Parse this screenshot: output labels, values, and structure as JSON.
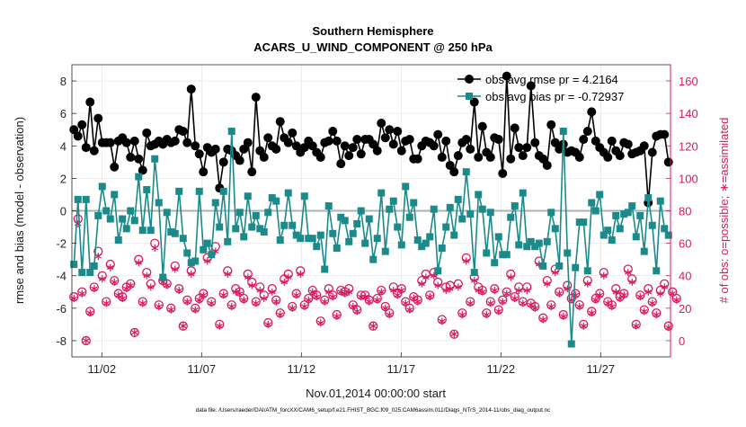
{
  "chart_data": {
    "type": "line",
    "title": "Southern Hemisphere",
    "subtitle": "ACARS_U_WIND_COMPONENT @ 250 hPa",
    "xlabel": "Nov.01,2014 00:00:00 start",
    "ylabel": "rmse and bias (model - observation)",
    "ylabel_right": "# of obs: o=possible; ∗=assimilated",
    "footer": "data file: /Users/raeder/DAI/ATM_forcXX/CAM6_setup/f.e21.FHIST_BGC.f09_025.CAM6assim.011/Diags_NTrS_2014-11/obs_diag_output.nc",
    "x_range": [
      0.5,
      30.5
    ],
    "x_ticks": [
      {
        "x": 2,
        "label": "11/02"
      },
      {
        "x": 7,
        "label": "11/07"
      },
      {
        "x": 12,
        "label": "11/12"
      },
      {
        "x": 17,
        "label": "11/17"
      },
      {
        "x": 22,
        "label": "11/22"
      },
      {
        "x": 27,
        "label": "11/27"
      }
    ],
    "ylim": [
      -9,
      9
    ],
    "yticks": [
      -8,
      -6,
      -4,
      -2,
      0,
      2,
      4,
      6,
      8
    ],
    "ylim_right": [
      -10,
      170
    ],
    "yticks_right": [
      0,
      20,
      40,
      60,
      80,
      100,
      120,
      140,
      160
    ],
    "grid": true,
    "legend_position": "top-right",
    "colors": {
      "rmse": "#000000",
      "bias": "#1a8a8a",
      "nobs": "#d81b60",
      "zero_line": "#b0b0b0"
    },
    "series": [
      {
        "name": "obs avg rmse pr = 4.2164",
        "axis": "left",
        "values": [
          5.0,
          4.6,
          5.3,
          3.9,
          6.7,
          3.7,
          5.7,
          4.2,
          4.2,
          4.2,
          2.7,
          4.3,
          4.5,
          4.2,
          3.3,
          4.3,
          3.2,
          2.5,
          4.8,
          4.0,
          4.1,
          4.3,
          4.1,
          4.4,
          4.2,
          4.3,
          5.0,
          4.9,
          4.2,
          7.5,
          4.0,
          3.5,
          2.4,
          3.9,
          3.6,
          3.8,
          1.4,
          3.0,
          3.8,
          3.7,
          3.4,
          3.1,
          3.8,
          4.2,
          2.4,
          7.0,
          3.7,
          3.3,
          4.5,
          4.0,
          3.8,
          5.5,
          4.5,
          4.2,
          4.8,
          4.0,
          3.6,
          3.9,
          4.3,
          4.0,
          3.6,
          3.3,
          4.2,
          4.3,
          4.9,
          4.3,
          2.9,
          4.0,
          3.4,
          3.9,
          4.4,
          3.5,
          4.4,
          4.4,
          4.1,
          3.7,
          5.4,
          4.5,
          5.0,
          4.1,
          4.9,
          3.7,
          4.3,
          4.4,
          3.2,
          3.2,
          4.0,
          4.3,
          4.2,
          4.0,
          4.7,
          3.3,
          4.3,
          2.8,
          2.4,
          3.4,
          4.2,
          4.4,
          3.8,
          6.7,
          3.3,
          5.2,
          3.6,
          3.3,
          4.5,
          4.4,
          2.3,
          8.3,
          3.2,
          5.1,
          3.9,
          3.4,
          3.9,
          7.7,
          4.2,
          3.4,
          3.2,
          2.8,
          5.3,
          4.2,
          3.8,
          4.1,
          3.6,
          3.7,
          3.6,
          3.3,
          4.4,
          4.9,
          6.1,
          4.3,
          3.9,
          3.6,
          3.3,
          4.3,
          3.7,
          3.4,
          4.2,
          4.1,
          3.5,
          3.6,
          3.7,
          4.0,
          0.5,
          3.6,
          4.6,
          4.7,
          4.7,
          3.0
        ]
      },
      {
        "name": "obs avg bias pr = -0.72937",
        "axis": "left",
        "values": [
          -3.3,
          0.7,
          -3.8,
          0.7,
          -3.8,
          -3.4,
          -0.3,
          1.5,
          0.0,
          -0.5,
          1.0,
          -1.8,
          -0.5,
          -1.1,
          0.0,
          -0.6,
          2.1,
          -1.2,
          1.3,
          -1.2,
          3.2,
          0.5,
          -4.1,
          -0.1,
          -1.3,
          -1.4,
          1.2,
          -1.7,
          -2.6,
          -3.2,
          -3.1,
          1.2,
          -2.4,
          -2.0,
          -2.7,
          0.5,
          -1.0,
          1.2,
          -1.9,
          4.9,
          -1.1,
          -0.1,
          -1.6,
          0.9,
          -1.0,
          -0.3,
          -1.1,
          -1.3,
          -0.1,
          0.8,
          0.6,
          -1.8,
          -0.9,
          1.1,
          -0.9,
          -1.5,
          -1.7,
          0.9,
          -1.7,
          -1.7,
          -2.2,
          -1.5,
          -3.6,
          0.3,
          -1.4,
          -2.3,
          -0.4,
          -0.6,
          -1.9,
          -1.4,
          -0.8,
          0.0,
          -2.0,
          -0.5,
          -3.0,
          -1.7,
          1.1,
          -2.5,
          0.1,
          0.6,
          -1.0,
          -2.1,
          1.5,
          -0.4,
          0.5,
          -1.8,
          -2.2,
          -2.0,
          -1.6,
          0.1,
          -3.7,
          -2.3,
          -1.0,
          0.2,
          -1.5,
          0.7,
          -0.5,
          2.4,
          -0.2,
          -3.8,
          1.0,
          0.1,
          -2.6,
          -0.1,
          -3.2,
          -1.6,
          -2.7,
          -2.7,
          -0.4,
          0.3,
          -2.1,
          1.1,
          -2.2,
          -1.9,
          -2.2,
          -2.0,
          -3.4,
          -1.9,
          -0.1,
          -1.1,
          -3.4,
          4.9,
          -2.6,
          -8.2,
          -3.5,
          -0.7,
          -0.7,
          -3.7,
          0.5,
          0.0,
          1.0,
          -1.5,
          -1.2,
          -1.8,
          -0.3,
          -1.1,
          -0.2,
          -0.1,
          0.3,
          -1.6,
          -0.3,
          -2.5,
          0.8,
          -0.9,
          -3.7,
          0.6,
          -1.1,
          -1.5
        ]
      },
      {
        "name": "obs possible",
        "axis": "right",
        "values": [
          27,
          75,
          30,
          0,
          18,
          33,
          55,
          40,
          24,
          47,
          37,
          29,
          27,
          33,
          35,
          5,
          50,
          24,
          42,
          35,
          60,
          22,
          37,
          35,
          20,
          46,
          32,
          9,
          25,
          43,
          20,
          26,
          29,
          51,
          24,
          58,
          10,
          29,
          43,
          22,
          32,
          30,
          26,
          41,
          36,
          24,
          33,
          28,
          11,
          32,
          25,
          17,
          38,
          41,
          21,
          29,
          43,
          22,
          26,
          31,
          28,
          12,
          25,
          32,
          28,
          16,
          31,
          30,
          32,
          22,
          19,
          28,
          28,
          25,
          9,
          26,
          31,
          21,
          17,
          33,
          29,
          32,
          24,
          20,
          27,
          25,
          37,
          41,
          28,
          42,
          36,
          13,
          33,
          34,
          4,
          35,
          17,
          51,
          24,
          39,
          33,
          31,
          17,
          24,
          32,
          19,
          25,
          30,
          41,
          27,
          33,
          24,
          33,
          23,
          21,
          49,
          14,
          37,
          22,
          44,
          30,
          16,
          34,
          26,
          29,
          22,
          10,
          37,
          18,
          26,
          29,
          42,
          24,
          22,
          32,
          27,
          29,
          44,
          38,
          10,
          28,
          19,
          32,
          24,
          17,
          31,
          35,
          9,
          30,
          26
        ]
      },
      {
        "name": "obs assimilated",
        "axis": "right",
        "values": [
          26,
          72,
          29,
          0,
          17,
          32,
          52,
          38,
          23,
          45,
          36,
          28,
          26,
          32,
          34,
          5,
          48,
          23,
          40,
          33,
          57,
          21,
          36,
          34,
          19,
          44,
          31,
          9,
          24,
          41,
          19,
          25,
          28,
          49,
          23,
          55,
          9,
          28,
          41,
          21,
          30,
          29,
          25,
          39,
          34,
          23,
          31,
          26,
          10,
          30,
          24,
          16,
          36,
          39,
          20,
          28,
          41,
          21,
          25,
          30,
          27,
          11,
          24,
          30,
          27,
          15,
          30,
          29,
          30,
          21,
          18,
          27,
          27,
          24,
          9,
          25,
          30,
          20,
          16,
          31,
          28,
          31,
          23,
          19,
          26,
          24,
          35,
          39,
          27,
          40,
          34,
          12,
          31,
          32,
          4,
          33,
          16,
          49,
          23,
          37,
          31,
          30,
          16,
          23,
          31,
          18,
          24,
          29,
          39,
          26,
          31,
          23,
          31,
          22,
          20,
          47,
          13,
          35,
          21,
          42,
          29,
          15,
          32,
          25,
          28,
          21,
          9,
          35,
          17,
          25,
          28,
          40,
          23,
          21,
          30,
          26,
          28,
          42,
          36,
          9,
          27,
          18,
          30,
          23,
          16,
          29,
          33,
          8,
          29,
          25
        ]
      }
    ]
  }
}
